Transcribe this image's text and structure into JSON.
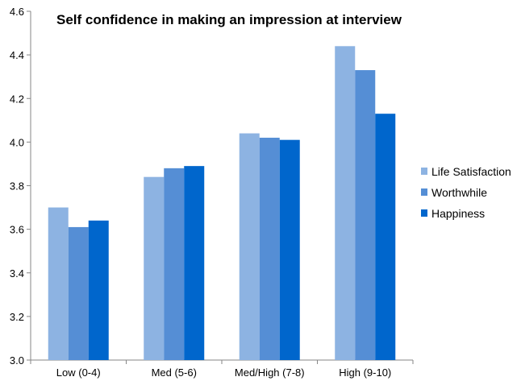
{
  "chart_data": {
    "type": "bar",
    "title": "Self confidence in making an impression at interview",
    "xlabel": "",
    "ylabel": "",
    "categories": [
      "Low (0-4)",
      "Med (5-6)",
      "Med/High (7-8)",
      "High (9-10)"
    ],
    "ylim": [
      3.0,
      4.6
    ],
    "yticks": [
      "3.0",
      "3.2",
      "3.4",
      "3.6",
      "3.8",
      "4.0",
      "4.2",
      "4.4",
      "4.6"
    ],
    "grid": false,
    "legend_position": "right",
    "series": [
      {
        "name": "Life Satisfaction",
        "color": "#8DB3E2",
        "values": [
          3.7,
          3.84,
          4.04,
          4.44
        ]
      },
      {
        "name": "Worthwhile",
        "color": "#558ED5",
        "values": [
          3.61,
          3.88,
          4.02,
          4.33
        ]
      },
      {
        "name": "Happiness",
        "color": "#0066CC",
        "values": [
          3.64,
          3.89,
          4.01,
          4.13
        ]
      }
    ]
  }
}
